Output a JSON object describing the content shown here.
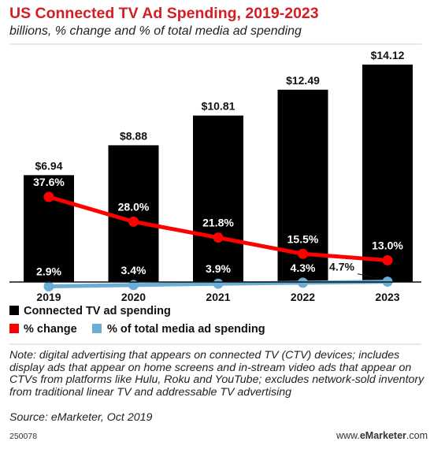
{
  "chart_data": {
    "type": "bar",
    "title": "US Connected TV Ad Spending, 2019-2023",
    "subtitle": "billions, % change and % of total media ad spending",
    "categories": [
      "2019",
      "2020",
      "2021",
      "2022",
      "2023"
    ],
    "series": [
      {
        "name": "Connected TV ad spending",
        "type": "bar",
        "color": "#000000",
        "values": [
          6.94,
          8.88,
          10.81,
          12.49,
          14.12
        ],
        "labels": [
          "$6.94",
          "$8.88",
          "$10.81",
          "$12.49",
          "$14.12"
        ]
      },
      {
        "name": "% change",
        "type": "line",
        "color": "#ff0000",
        "values": [
          37.6,
          28.0,
          21.8,
          15.5,
          13.0
        ],
        "labels": [
          "37.6%",
          "28.0%",
          "21.8%",
          "15.5%",
          "13.0%"
        ]
      },
      {
        "name": "% of total media ad spending",
        "type": "line",
        "color": "#6aaed6",
        "values": [
          2.9,
          3.4,
          3.9,
          4.3,
          4.7
        ],
        "labels": [
          "2.9%",
          "3.4%",
          "3.9%",
          "4.3%",
          "4.7%"
        ]
      }
    ],
    "grid": false,
    "legend_position": "bottom-left"
  },
  "note": "Note: digital advertising that appears on connected TV (CTV) devices; includes display ads that appear on home screens and in-stream video ads that appear on CTVs from platforms like Hulu, Roku and YouTube; excludes network-sold inventory from traditional linear TV and addressable TV advertising",
  "source": "Source: eMarketer, Oct 2019",
  "footer": {
    "id": "250078",
    "brand_prefix": "www.",
    "brand_name": "eMarketer",
    "brand_suffix": ".com"
  }
}
